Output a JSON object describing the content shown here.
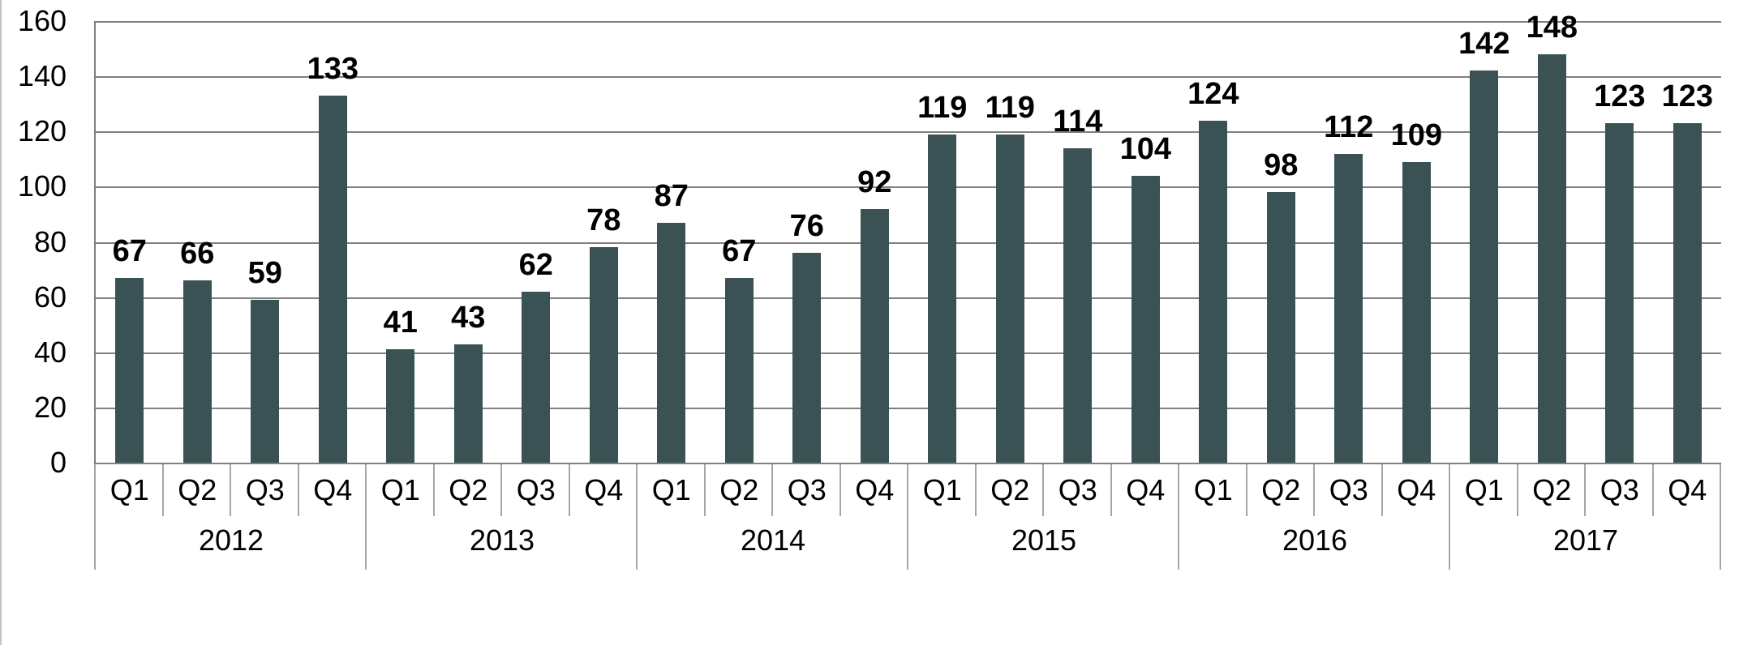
{
  "chart_data": {
    "type": "bar",
    "title": "",
    "xlabel": "",
    "ylabel": "",
    "ylim": [
      0,
      160
    ],
    "y_ticks": [
      0,
      20,
      40,
      60,
      80,
      100,
      120,
      140,
      160
    ],
    "grid": true,
    "legend": false,
    "data_labels": true,
    "quarter_labels": [
      "Q1",
      "Q2",
      "Q3",
      "Q4"
    ],
    "groups": [
      {
        "year": "2012",
        "values": [
          67,
          66,
          59,
          133
        ]
      },
      {
        "year": "2013",
        "values": [
          41,
          43,
          62,
          78
        ]
      },
      {
        "year": "2014",
        "values": [
          87,
          67,
          76,
          92
        ]
      },
      {
        "year": "2015",
        "values": [
          119,
          119,
          114,
          104
        ]
      },
      {
        "year": "2016",
        "values": [
          124,
          98,
          112,
          109
        ]
      },
      {
        "year": "2017",
        "values": [
          142,
          148,
          123,
          123
        ]
      }
    ]
  },
  "colors": {
    "bar": "#3a5254",
    "gridline": "#808080",
    "axis_line": "#808080",
    "separator": "#a6a6a6",
    "text": "#000000",
    "frame_border": "#c4c4c4",
    "background": "#ffffff"
  }
}
